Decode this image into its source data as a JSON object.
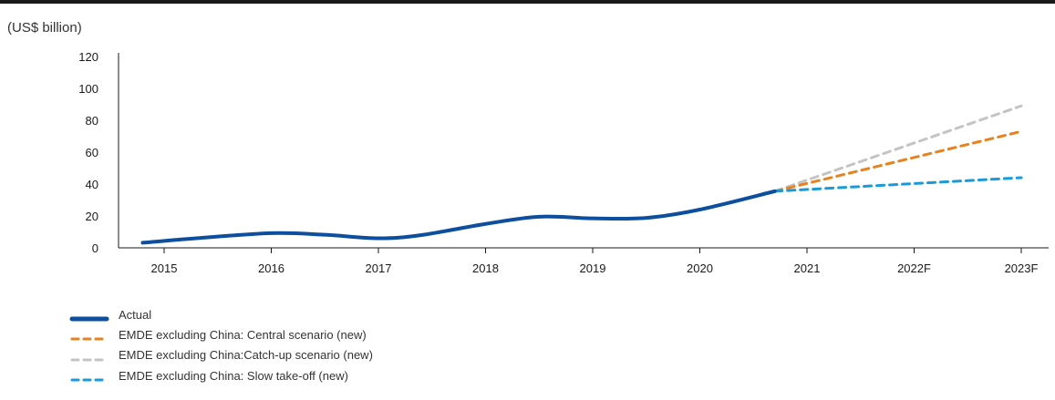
{
  "chart_data": {
    "type": "line",
    "units_label": "(US$ billion)",
    "categories": [
      "2015",
      "2016",
      "2017",
      "2018",
      "2019",
      "2020",
      "2021",
      "2022F",
      "2023F"
    ],
    "ylim": [
      0,
      120
    ],
    "yticks": [
      "0",
      "20",
      "40",
      "60",
      "80",
      "100",
      "120"
    ],
    "series": [
      {
        "name": "Actual",
        "color": "#0d4f9e",
        "style": "solid",
        "points": [
          [
            2014.8,
            3.2
          ],
          [
            2015.3,
            6.0
          ],
          [
            2016.0,
            9.2
          ],
          [
            2016.5,
            8.2
          ],
          [
            2017.0,
            6.0
          ],
          [
            2017.4,
            8.0
          ],
          [
            2018.0,
            15.0
          ],
          [
            2018.5,
            19.5
          ],
          [
            2019.0,
            18.5
          ],
          [
            2019.5,
            18.8
          ],
          [
            2020.0,
            24.0
          ],
          [
            2020.7,
            35.5
          ]
        ]
      },
      {
        "name": "EMDE excluding China: Central scenario (new)",
        "color": "#e8821e",
        "style": "dashed",
        "points": [
          [
            2020.7,
            35.5
          ],
          [
            2023.0,
            73.0
          ]
        ]
      },
      {
        "name": "EMDE excluding China:Catch-up scenario (new)",
        "color": "#c4c4c4",
        "style": "dashed",
        "points": [
          [
            2020.7,
            35.5
          ],
          [
            2023.0,
            89.0
          ]
        ]
      },
      {
        "name": "EMDE excluding China: Slow take-off (new)",
        "color": "#1a9ad9",
        "style": "dashed",
        "points": [
          [
            2020.7,
            35.5
          ],
          [
            2023.0,
            44.0
          ]
        ]
      }
    ],
    "grid": false,
    "legend_position": "bottom-left"
  }
}
